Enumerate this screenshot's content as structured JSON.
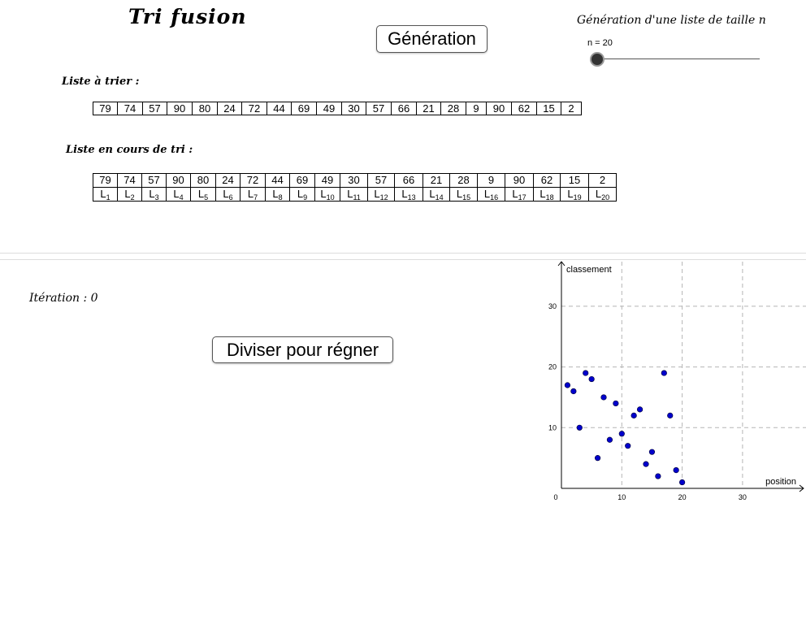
{
  "header": {
    "title": "Tri fusion",
    "generate_button": "Génération",
    "slider_caption": "Génération d'une liste de taille n",
    "slider_value_label": "n = 20",
    "n": 20
  },
  "list_to_sort": {
    "label": "Liste à trier :",
    "values": [
      "79",
      "74",
      "57",
      "90",
      "80",
      "24",
      "72",
      "44",
      "69",
      "49",
      "30",
      "57",
      "66",
      "21",
      "28",
      "9",
      "90",
      "62",
      "15",
      "2"
    ]
  },
  "list_sorting": {
    "label": "Liste en cours de tri :",
    "values": [
      "79",
      "74",
      "57",
      "90",
      "80",
      "24",
      "72",
      "44",
      "69",
      "49",
      "30",
      "57",
      "66",
      "21",
      "28",
      "9",
      "90",
      "62",
      "15",
      "2"
    ],
    "index_prefix": "L",
    "indices": [
      "1",
      "2",
      "3",
      "4",
      "5",
      "6",
      "7",
      "8",
      "9",
      "10",
      "11",
      "12",
      "13",
      "14",
      "15",
      "16",
      "17",
      "18",
      "19",
      "20"
    ]
  },
  "iteration": {
    "label": "Itération : 0"
  },
  "divide_button": "Diviser pour régner",
  "chart_data": {
    "type": "scatter",
    "xlabel": "position",
    "ylabel": "classement",
    "xlim": [
      0,
      40
    ],
    "ylim": [
      0,
      38
    ],
    "xticks": [
      "0",
      "10",
      "20",
      "30"
    ],
    "yticks": [
      "10",
      "20",
      "30"
    ],
    "grid": true,
    "point_color": "#0000cc",
    "x": [
      1,
      2,
      3,
      4,
      5,
      6,
      7,
      8,
      9,
      10,
      11,
      12,
      13,
      14,
      15,
      16,
      17,
      18,
      19,
      20
    ],
    "y": [
      17,
      16,
      10,
      19,
      18,
      5,
      15,
      8,
      14,
      9,
      7,
      12,
      13,
      4,
      6,
      2,
      19,
      12,
      3,
      1
    ]
  }
}
